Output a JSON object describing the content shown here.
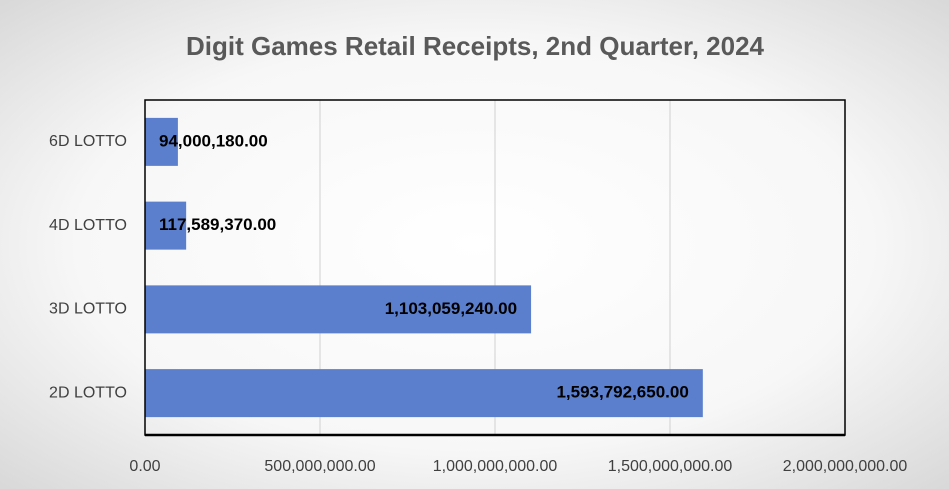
{
  "chart_data": {
    "type": "bar",
    "orientation": "horizontal",
    "title": "Digit Games Retail Receipts, 2nd Quarter, 2024",
    "categories": [
      "6D LOTTO",
      "4D LOTTO",
      "3D LOTTO",
      "2D LOTTO"
    ],
    "values": [
      94000180,
      117589370,
      1103059240,
      1593792650
    ],
    "value_labels": [
      "94,000,180.00",
      "117,589,370.00",
      "1,103,059,240.00",
      "1,593,792,650.00"
    ],
    "color": "#5b7fcd",
    "xlim": [
      0,
      2000000000
    ],
    "xticks": [
      {
        "value": 0,
        "label": "0.00"
      },
      {
        "value": 500000000,
        "label": "500,000,000.00"
      },
      {
        "value": 1000000000,
        "label": "1,000,000,000.00"
      },
      {
        "value": 1500000000,
        "label": "1,500,000,000.00"
      },
      {
        "value": 2000000000,
        "label": "2,000,000,000.00"
      }
    ],
    "grid": true
  }
}
